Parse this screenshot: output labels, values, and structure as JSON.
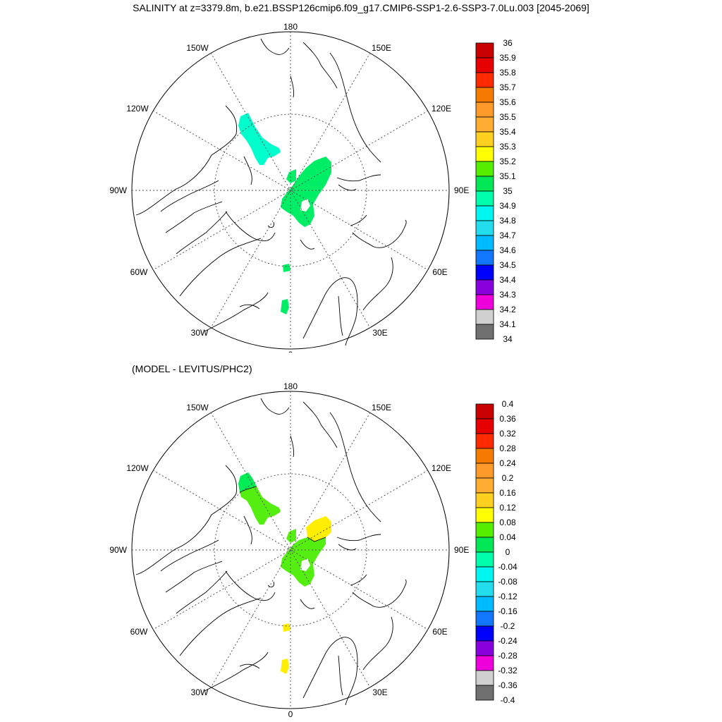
{
  "title": "SALINITY at z=3379.8m, b.e21.BSSP126cmip6.f09_g17.CMIP6-SSP1-2.6-SSP3-7.0Lu.003 [2045-2069]",
  "subtitle": "(MODEL - LEVITUS/PHC2)",
  "map_labels": {
    "top": "180",
    "bottom": "0",
    "left": "90W",
    "right": "90E",
    "ul1": "150W",
    "ul2": "120W",
    "ur1": "150E",
    "ur2": "120E",
    "ll1": "60W",
    "ll2": "30W",
    "lr1": "60E",
    "lr2": "30E"
  },
  "colors": {
    "lime": "#00ee66",
    "aqua": "#00ffcc",
    "green": "#55ee11",
    "yellow": "#ffee00",
    "land": "#000000",
    "grid": "#555555"
  },
  "panels": [
    {
      "id": "salinity",
      "colorbar": {
        "labels": [
          "36",
          "35.9",
          "35.8",
          "35.7",
          "35.6",
          "35.5",
          "35.4",
          "35.3",
          "35.2",
          "35.1",
          "35",
          "34.9",
          "34.8",
          "34.7",
          "34.6",
          "34.5",
          "34.4",
          "34.3",
          "34.2",
          "34.1",
          "34"
        ],
        "colors": [
          "#c80000",
          "#e60000",
          "#ff2a00",
          "#f57a00",
          "#ff9a2a",
          "#ffae33",
          "#ffd020",
          "#ffff00",
          "#55ee00",
          "#00e855",
          "#00ffaa",
          "#00f5f0",
          "#22ddee",
          "#00bbff",
          "#1177ff",
          "#0000ff",
          "#8800dd",
          "#ee00dd",
          "#d0d0d0",
          "#707070"
        ]
      }
    },
    {
      "id": "difference",
      "colorbar": {
        "labels": [
          "0.4",
          "0.36",
          "0.32",
          "0.28",
          "0.24",
          "0.2",
          "0.16",
          "0.12",
          "0.08",
          "0.04",
          "0",
          "-0.04",
          "-0.08",
          "-0.12",
          "-0.16",
          "-0.2",
          "-0.24",
          "-0.28",
          "-0.32",
          "-0.36",
          "-0.4"
        ],
        "colors": [
          "#c80000",
          "#e60000",
          "#ff2a00",
          "#f57a00",
          "#ff9a2a",
          "#ffae33",
          "#ffd020",
          "#ffff00",
          "#55ee00",
          "#00e855",
          "#00ffaa",
          "#00f5f0",
          "#22ddee",
          "#00bbff",
          "#1177ff",
          "#0000ff",
          "#8800dd",
          "#ee00dd",
          "#d0d0d0",
          "#707070"
        ]
      }
    }
  ]
}
